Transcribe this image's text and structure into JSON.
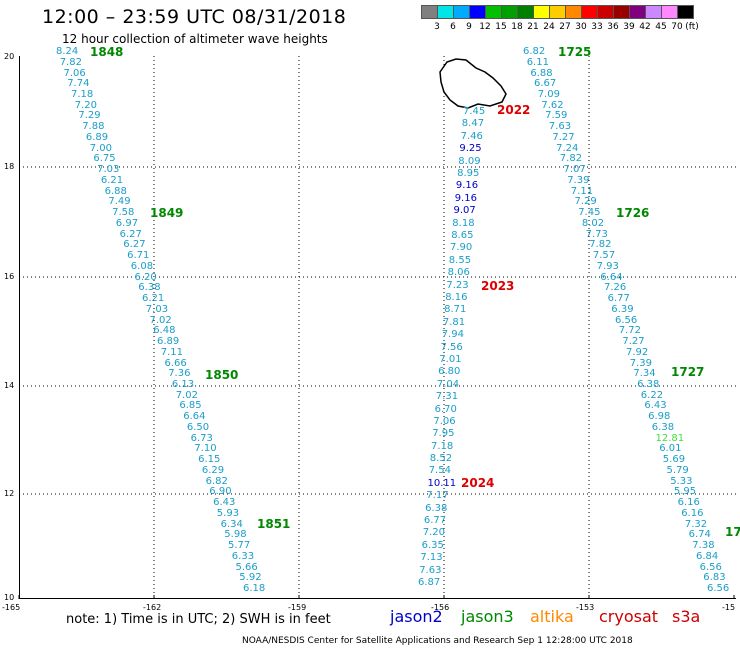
{
  "title": "12:00 – 23:59 UTC 08/31/2018",
  "subtitle": "12 hour collection of altimeter wave heights",
  "colorbar": {
    "unit": "(ft)",
    "colors": [
      "#808080",
      "#00e5e5",
      "#00aaff",
      "#0000ff",
      "#00c000",
      "#00a000",
      "#008000",
      "#ffff00",
      "#ffcc00",
      "#ff8800",
      "#ff0000",
      "#cc0000",
      "#990000",
      "#800080",
      "#cc88ff",
      "#ff88ff",
      "#000000"
    ],
    "labels": [
      "3",
      "6",
      "9",
      "12",
      "15",
      "18",
      "21",
      "24",
      "27",
      "30",
      "33",
      "36",
      "39",
      "42",
      "45",
      "70"
    ]
  },
  "y_axis": [
    "20",
    "18",
    "16",
    "14",
    "12",
    "10"
  ],
  "x_axis": [
    "-165",
    "-162",
    "-159",
    "-156",
    "-153",
    "-15"
  ],
  "note": "note:  1) Time is in UTC;  2) SWH is in feet",
  "legend": [
    {
      "name": "jason2",
      "color": "#0000cc"
    },
    {
      "name": "jason3",
      "color": "#008800"
    },
    {
      "name": "altika",
      "color": "#ff8800"
    },
    {
      "name": "cryosat",
      "color": "#cc0000"
    },
    {
      "name": "s3a",
      "color": "#cc0000"
    }
  ],
  "credit": "NOAA/NESDIS Center for Satellite Applications and Research     Sep  1 12:28:00 UTC 2018",
  "map": {
    "color_normal": "#1a9ec8",
    "color_blue": "#0000cc",
    "color_green": "#44dd44",
    "tracks": [
      {
        "label_color": "#008800",
        "pass_labels": [
          [
            "1848",
            90,
            52
          ],
          [
            "1849",
            150,
            213
          ],
          [
            "1850",
            205,
            375
          ],
          [
            "1851",
            257,
            524
          ]
        ],
        "start": [
          56,
          52
        ],
        "end": [
          243,
          589
        ],
        "values": [
          "8.24",
          "7.82",
          "7.06",
          "7.74",
          "7.18",
          "7.20",
          "7.29",
          "7.88",
          "6.89",
          "7.00",
          "6.75",
          "7.03",
          "6.21",
          "6.88",
          "7.49",
          "7.58",
          "6.97",
          "6.27",
          "6.27",
          "6.71",
          "6.08",
          "6.20",
          "6.38",
          "6.21",
          "7.03",
          "7.02",
          "6.48",
          "6.89",
          "7.11",
          "6.66",
          "7.36",
          "6.13",
          "7.02",
          "6.85",
          "6.64",
          "6.50",
          "6.73",
          "7.10",
          "6.15",
          "6.29",
          "6.82",
          "6.90",
          "6.43",
          "5.93",
          "6.34",
          "5.98",
          "5.77",
          "6.33",
          "5.66",
          "5.92",
          "6.18"
        ]
      },
      {
        "label_color": "#dd0000",
        "pass_labels": [
          [
            "2022",
            497,
            110
          ],
          [
            "2023",
            481,
            286
          ],
          [
            "2024",
            461,
            483
          ]
        ],
        "start": [
          463,
          112
        ],
        "end": [
          418,
          583
        ],
        "values": [
          "7.45",
          "8.47",
          "7.46",
          "9.25",
          "8.09",
          "8.95",
          "9.16",
          "9.16",
          "9.07",
          "8.18",
          "8.65",
          "7.90",
          "8.55",
          "8.06",
          "7.23",
          "8.16",
          "8.71",
          "7.81",
          "7.94",
          "7.56",
          "7.01",
          "6.80",
          "7.04",
          "7.31",
          "6.70",
          "7.06",
          "7.95",
          "7.18",
          "8.52",
          "7.54",
          "10.11",
          "7.17",
          "6.38",
          "6.77",
          "7.20",
          "6.35",
          "7.13",
          "7.63",
          "6.87"
        ],
        "blue_indices": [
          3,
          6,
          7,
          8
        ],
        "dark_indices": [
          30
        ]
      },
      {
        "label_color": "#008800",
        "pass_labels": [
          [
            "1725",
            558,
            52
          ],
          [
            "1726",
            616,
            213
          ],
          [
            "1727",
            671,
            372
          ],
          [
            "17",
            725,
            532
          ]
        ],
        "start": [
          523,
          52
        ],
        "end": [
          707,
          589
        ],
        "values": [
          "6.82",
          "6.11",
          "6.88",
          "6.67",
          "7.09",
          "7.62",
          "7.59",
          "7.63",
          "7.27",
          "7.24",
          "7.82",
          "7.07",
          "7.39",
          "7.11",
          "7.29",
          "7.45",
          "8.02",
          "7.73",
          "7.82",
          "7.57",
          "7.93",
          "6.64",
          "7.26",
          "6.77",
          "6.39",
          "6.56",
          "7.72",
          "7.27",
          "7.92",
          "7.39",
          "7.34",
          "6.38",
          "6.22",
          "6.43",
          "6.98",
          "6.38",
          "12.81",
          "6.01",
          "5.69",
          "5.79",
          "5.33",
          "5.95",
          "6.16",
          "6.16",
          "7.32",
          "6.74",
          "7.38",
          "6.84",
          "6.56",
          "6.83",
          "6.56"
        ],
        "green_indices": [
          36
        ]
      }
    ]
  }
}
